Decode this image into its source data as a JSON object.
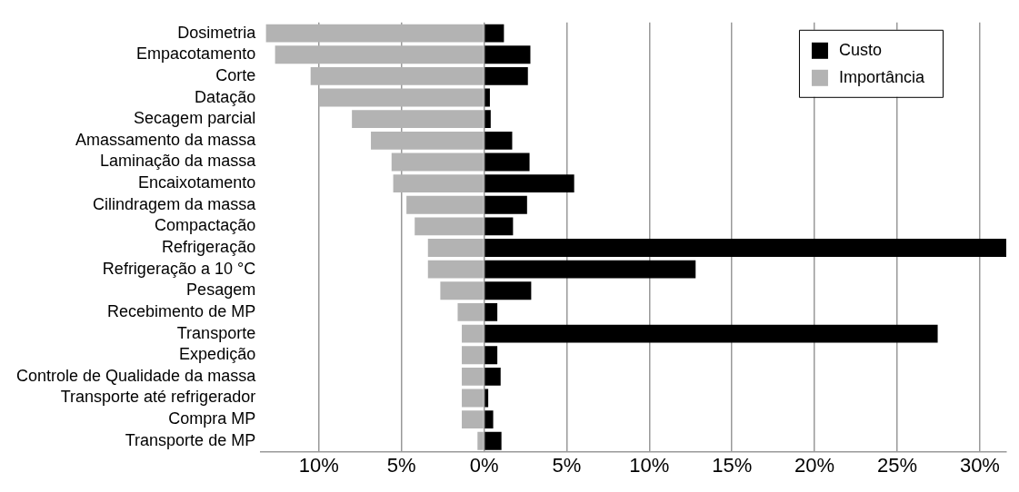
{
  "chart_data": {
    "type": "bar",
    "orientation": "horizontal",
    "stacked": true,
    "grid": "x",
    "legend": "top right",
    "categories": [
      "Dosimetria",
      "Empacotamento",
      "Corte",
      "Datação",
      "Secagem parcial",
      "Amassamento da massa",
      "Laminação da massa",
      "Encaixotamento",
      "Cilindragem da massa",
      "Compactação",
      "Refrigeração",
      "Refrigeração a 10 °C",
      "Pesagem",
      "Recebimento de MP",
      "Transporte",
      "Expedição",
      "Controle de Qualidade da massa",
      "Transporte até refrigerador",
      "Compra MP",
      "Transporte de MP"
    ],
    "series": [
      {
        "name": "Custo",
        "color": "#000000",
        "values": [
          1.2,
          2.8,
          2.65,
          0.35,
          0.4,
          1.7,
          2.75,
          5.45,
          2.6,
          1.75,
          31.6,
          12.8,
          2.85,
          0.8,
          27.45,
          0.8,
          1.0,
          0.25,
          0.55,
          1.05
        ]
      },
      {
        "name": "Importância",
        "color": "#b3b3b3",
        "values": [
          -13.2,
          -12.65,
          -10.5,
          -10.0,
          -8.0,
          -6.85,
          -5.6,
          -5.5,
          -4.7,
          -4.2,
          -3.4,
          -3.4,
          -2.65,
          -1.6,
          -1.35,
          -1.35,
          -1.35,
          -1.35,
          -1.35,
          -0.4
        ]
      }
    ],
    "xlim": [
      -13.5,
      31.6
    ],
    "xticks": [
      {
        "value": -10,
        "label": "10%"
      },
      {
        "value": -5,
        "label": "5%"
      },
      {
        "value": 0,
        "label": "0%"
      },
      {
        "value": 5,
        "label": "5%"
      },
      {
        "value": 10,
        "label": "10%"
      },
      {
        "value": 15,
        "label": "15%"
      },
      {
        "value": 20,
        "label": "20%"
      },
      {
        "value": 25,
        "label": "25%"
      },
      {
        "value": 30,
        "label": "30%"
      }
    ]
  }
}
